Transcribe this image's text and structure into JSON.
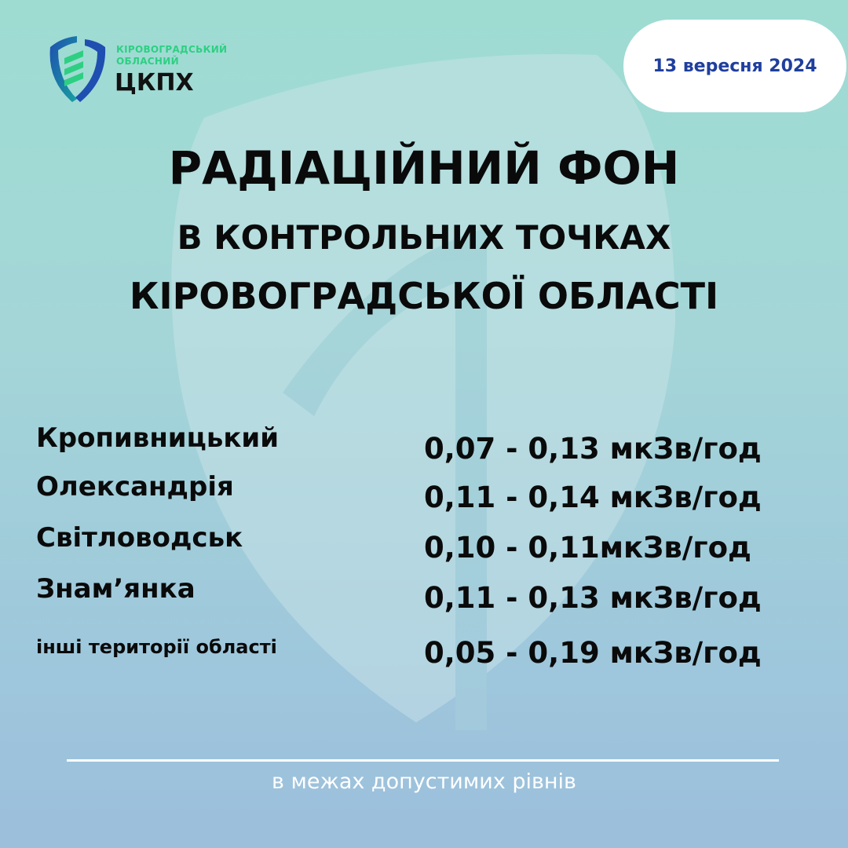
{
  "logo": {
    "line1": "КІРОВОГРАДСЬКИЙ",
    "line2": "ОБЛАСНИЙ",
    "acronym": "ЦКПХ"
  },
  "date": "13 вересня 2024",
  "title": {
    "line1": "РАДІАЦІЙНИЙ ФОН",
    "line2": "В КОНТРОЛЬНИХ ТОЧКАХ",
    "line3": "КІРОВОГРАДСЬКОЇ ОБЛАСТІ"
  },
  "readings": [
    {
      "place": "Кропивницький",
      "value": "0,07 - 0,13 мкЗв/год"
    },
    {
      "place": "Олександрія",
      "value": "0,11 - 0,14 мкЗв/год"
    },
    {
      "place": "Світловодськ",
      "value": "0,10 - 0,11мкЗв/год"
    },
    {
      "place": "Знам’янка",
      "value": "0,11 - 0,13 мкЗв/год"
    },
    {
      "place": "інші території області",
      "value": "0,05 - 0,19 мкЗв/год"
    }
  ],
  "footer": "в межах допустимих рівнів",
  "colors": {
    "accent_green": "#2ecf83",
    "logo_blue": "#1f4fb0",
    "date_text": "#1f3f9e"
  }
}
